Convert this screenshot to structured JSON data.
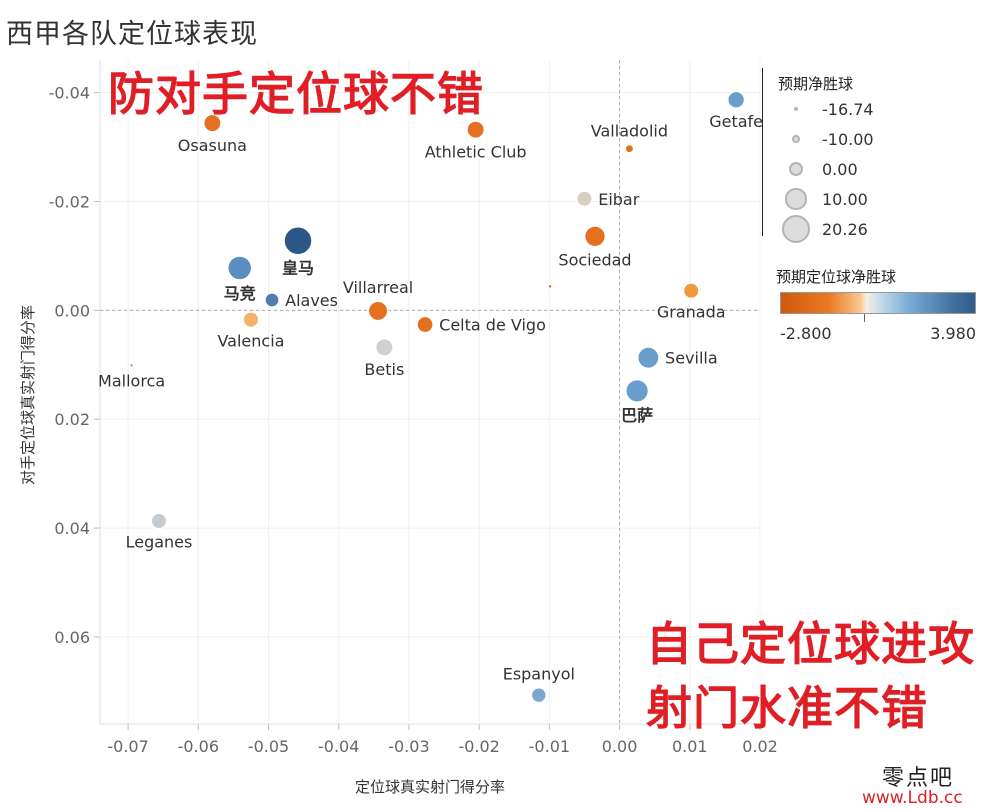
{
  "header": {
    "title": "西甲各队定位球表现"
  },
  "annotations": {
    "top": "防对手定位球不错",
    "bottom_line1": "自己定位球进攻",
    "bottom_line2": "射门水准不错"
  },
  "legend": {
    "size_title": "预期净胜球",
    "size_items": [
      "-16.74",
      "-10.00",
      "0.00",
      "10.00",
      "20.26"
    ],
    "color_title": "预期定位球净胜球",
    "color_min": "-2.800",
    "color_max": "3.980"
  },
  "watermark": {
    "line1": "零点吧",
    "line2": "www.Ldb.cc"
  },
  "chart_data": {
    "type": "scatter",
    "title": "西甲各队定位球表现",
    "xlabel": "定位球真实射门得分率",
    "ylabel": "对手定位球真实射门得分率",
    "xlim": [
      -0.074,
      0.02
    ],
    "ylim": [
      0.076,
      -0.046
    ],
    "y_inverted": true,
    "x_ticks": [
      "-0.07",
      "-0.06",
      "-0.05",
      "-0.04",
      "-0.03",
      "-0.02",
      "-0.01",
      "0.00",
      "0.01",
      "0.02"
    ],
    "x_tick_values": [
      -0.07,
      -0.06,
      -0.05,
      -0.04,
      -0.03,
      -0.02,
      -0.01,
      0.0,
      0.01,
      0.02
    ],
    "y_ticks": [
      "-0.04",
      "-0.02",
      "0.00",
      "0.02",
      "0.04",
      "0.06"
    ],
    "y_tick_values": [
      -0.04,
      -0.02,
      0.0,
      0.02,
      0.04,
      0.06
    ],
    "reference_lines": {
      "x": 0.0,
      "y": 0.0
    },
    "size_legend_title": "预期净胜球",
    "color_legend_title": "预期定位球净胜球",
    "points": [
      {
        "team": "Osasuna",
        "x": -0.058,
        "y": -0.0344,
        "color": "#e2701f",
        "xg": 4,
        "label_pos": "below"
      },
      {
        "team": "Athletic Club",
        "x": -0.0205,
        "y": -0.0332,
        "color": "#e2701f",
        "xg": 4,
        "label_pos": "below"
      },
      {
        "team": "Valladolid",
        "x": 0.0014,
        "y": -0.0297,
        "color": "#e2701f",
        "xg": -10,
        "label_pos": "above"
      },
      {
        "team": "Getafe",
        "x": 0.0166,
        "y": -0.0387,
        "color": "#6a9ecb",
        "xg": 3,
        "label_pos": "below"
      },
      {
        "team": "Eibar",
        "x": -0.005,
        "y": -0.0205,
        "color": "#d8cfc3",
        "xg": 1,
        "label_pos": "right"
      },
      {
        "team": "皇马",
        "x": -0.0458,
        "y": -0.0128,
        "color": "#2b5887",
        "xg": 20.26,
        "label_pos": "below"
      },
      {
        "team": "马竞",
        "x": -0.0541,
        "y": -0.0078,
        "color": "#5a8dc0",
        "xg": 14,
        "label_pos": "below"
      },
      {
        "team": "Sociedad",
        "x": -0.0035,
        "y": -0.0136,
        "color": "#e2701f",
        "xg": 9,
        "label_pos": "below"
      },
      {
        "team": "Alaves",
        "x": -0.0495,
        "y": -0.0019,
        "color": "#4e7fb0",
        "xg": -1,
        "label_pos": "right"
      },
      {
        "team": "Villarreal",
        "x": -0.0344,
        "y": 0.0001,
        "color": "#e2701f",
        "xg": 7,
        "label_pos": "above"
      },
      {
        "team": "Granada",
        "x": 0.0102,
        "y": -0.0036,
        "color": "#f09a3f",
        "xg": 1,
        "label_pos": "below"
      },
      {
        "team": "Celta de Vigo",
        "x": -0.0277,
        "y": 0.0026,
        "color": "#e2701f",
        "xg": 2,
        "label_pos": "right"
      },
      {
        "team": "Valencia",
        "x": -0.0525,
        "y": 0.0017,
        "color": "#f4b269",
        "xg": 1,
        "label_pos": "below"
      },
      {
        "team": "Betis",
        "x": -0.0335,
        "y": 0.0068,
        "color": "#d2d0cc",
        "xg": 4,
        "label_pos": "below"
      },
      {
        "team": "Mallorca",
        "x": -0.0695,
        "y": 0.0101,
        "color": "#7eb0dc",
        "xg": -16.74,
        "label_pos": "below"
      },
      {
        "team": "Sevilla",
        "x": 0.0041,
        "y": 0.0087,
        "color": "#6a9ecb",
        "xg": 10,
        "label_pos": "right"
      },
      {
        "team": "巴萨",
        "x": 0.0025,
        "y": 0.0148,
        "color": "#6a9ecb",
        "xg": 12,
        "label_pos": "below"
      },
      {
        "team": "Leganes",
        "x": -0.0656,
        "y": 0.0387,
        "color": "#c5cbcf",
        "xg": 1,
        "label_pos": "below"
      },
      {
        "team": "Espanyol",
        "x": -0.0115,
        "y": 0.0707,
        "color": "#7aa6d0",
        "xg": 0,
        "label_pos": "above"
      },
      {
        "team": "",
        "x": -0.0099,
        "y": -0.0044,
        "color": "#e2701f",
        "xg": -16.74,
        "label_pos": "none"
      }
    ]
  }
}
